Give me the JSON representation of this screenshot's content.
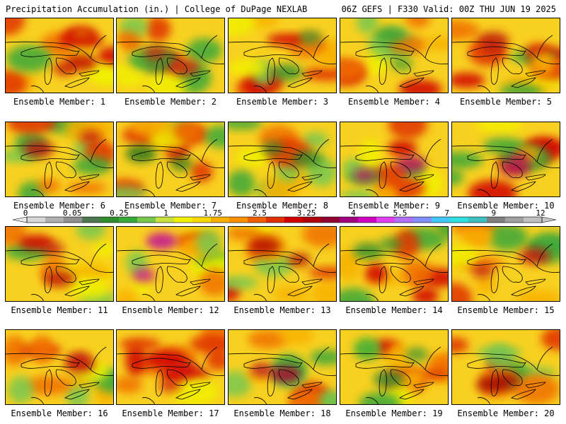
{
  "header": {
    "left": "Precipitation Accumulation (in.) | College of DuPage NEXLAB",
    "right": "06Z GEFS | F330 Valid: 00Z THU JUN 19 2025"
  },
  "members": [
    {
      "label": "Ensemble Member: 1",
      "accent": "#c00000"
    },
    {
      "label": "Ensemble Member: 2",
      "accent": "#d02010"
    },
    {
      "label": "Ensemble Member: 3",
      "accent": "#309030"
    },
    {
      "label": "Ensemble Member: 4",
      "accent": "#40a030"
    },
    {
      "label": "Ensemble Member: 5",
      "accent": "#c02010"
    },
    {
      "label": "Ensemble Member: 6",
      "accent": "#c01010"
    },
    {
      "label": "Ensemble Member: 7",
      "accent": "#1e6e1e"
    },
    {
      "label": "Ensemble Member: 8",
      "accent": "#2e8e2e"
    },
    {
      "label": "Ensemble Member: 9",
      "accent": "#c01060"
    },
    {
      "label": "Ensemble Member: 10",
      "accent": "#c01050"
    },
    {
      "label": "Ensemble Member: 11",
      "accent": "#c01010"
    },
    {
      "label": "Ensemble Member: 12",
      "accent": "#c000a0"
    },
    {
      "label": "Ensemble Member: 13",
      "accent": "#b00000"
    },
    {
      "label": "Ensemble Member: 14",
      "accent": "#2e8e2e"
    },
    {
      "label": "Ensemble Member: 15",
      "accent": "#c01010"
    },
    {
      "label": "Ensemble Member: 16",
      "accent": "#c01010"
    },
    {
      "label": "Ensemble Member: 17",
      "accent": "#d01010"
    },
    {
      "label": "Ensemble Member: 18",
      "accent": "#b00030"
    },
    {
      "label": "Ensemble Member: 19",
      "accent": "#309030"
    },
    {
      "label": "Ensemble Member: 20",
      "accent": "#a00000"
    }
  ],
  "colorbar": {
    "tick_labels": [
      "0",
      "0.05",
      "0.25",
      "1",
      "1.75",
      "2.5",
      "3.25",
      "4",
      "5.5",
      "7",
      "9",
      "12"
    ],
    "colors": [
      "#d8d8d8",
      "#b0b0b0",
      "#909090",
      "#507850",
      "#2e8e2e",
      "#3aa83a",
      "#78c850",
      "#c8e040",
      "#f0f000",
      "#f8d800",
      "#f8b000",
      "#f89000",
      "#f06000",
      "#e03000",
      "#d00000",
      "#b00010",
      "#900030",
      "#a00080",
      "#d000c0",
      "#e040f0",
      "#b070f8",
      "#8090f8",
      "#40c8f8",
      "#30e0e0",
      "#40c0c0",
      "#808080",
      "#a0a0a0",
      "#c0c0c0"
    ]
  }
}
